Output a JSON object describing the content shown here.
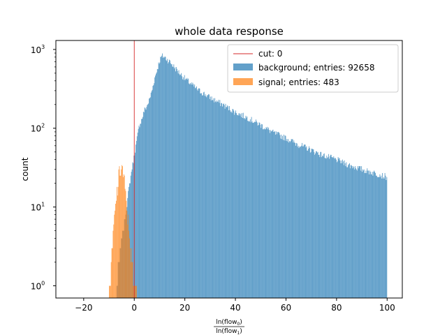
{
  "chart_data": {
    "type": "histogram",
    "title": "whole data response",
    "ylabel": "count",
    "xlabel_parts": {
      "num": "ln(flow",
      "num_sub": "0",
      "den": "ln(flow",
      "den_sub": "1",
      "close": ")"
    },
    "xlim": [
      -31,
      106
    ],
    "ylim": [
      0.7,
      1300
    ],
    "yscale": "log",
    "xticks": [
      -20,
      0,
      20,
      40,
      60,
      80,
      100
    ],
    "xtick_labels": [
      "−20",
      "0",
      "20",
      "40",
      "60",
      "80",
      "100"
    ],
    "yticks": [
      1,
      10,
      100,
      1000
    ],
    "ytick_labels": {
      "base": "10",
      "exponents": [
        "0",
        "1",
        "2",
        "3"
      ]
    },
    "cut": {
      "label": "cut: 0",
      "x": 0,
      "color": "#d62728"
    },
    "legend": {
      "placement": "upper right"
    },
    "series": [
      {
        "name": "background; entries: 92658",
        "color": "#1f77b4",
        "alpha": 0.7,
        "profile": [
          [
            -7,
            1
          ],
          [
            -6,
            2
          ],
          [
            -5,
            4
          ],
          [
            -4,
            6
          ],
          [
            -3,
            10
          ],
          [
            -2,
            18
          ],
          [
            -1,
            30
          ],
          [
            0,
            45
          ],
          [
            1,
            70
          ],
          [
            2,
            110
          ],
          [
            3,
            130
          ],
          [
            4,
            170
          ],
          [
            5,
            190
          ],
          [
            6,
            230
          ],
          [
            7,
            300
          ],
          [
            8,
            420
          ],
          [
            9,
            550
          ],
          [
            10,
            720
          ],
          [
            11,
            830
          ],
          [
            12,
            800
          ],
          [
            14,
            700
          ],
          [
            16,
            590
          ],
          [
            18,
            500
          ],
          [
            20,
            430
          ],
          [
            25,
            310
          ],
          [
            30,
            245
          ],
          [
            35,
            200
          ],
          [
            40,
            160
          ],
          [
            45,
            135
          ],
          [
            50,
            110
          ],
          [
            55,
            88
          ],
          [
            60,
            75
          ],
          [
            65,
            62
          ],
          [
            70,
            53
          ],
          [
            75,
            45
          ],
          [
            80,
            40
          ],
          [
            85,
            34
          ],
          [
            90,
            30
          ],
          [
            95,
            27
          ],
          [
            100,
            24
          ]
        ]
      },
      {
        "name": "signal; entries: 483",
        "color": "#ff7f0e",
        "alpha": 0.7,
        "profile": [
          [
            -10,
            1
          ],
          [
            -9,
            2
          ],
          [
            -8,
            6
          ],
          [
            -7,
            14
          ],
          [
            -6,
            25
          ],
          [
            -5,
            35
          ],
          [
            -4,
            22
          ],
          [
            -3,
            10
          ],
          [
            -2,
            5
          ],
          [
            -1,
            2
          ],
          [
            0,
            1
          ],
          [
            1,
            1
          ]
        ]
      }
    ]
  }
}
